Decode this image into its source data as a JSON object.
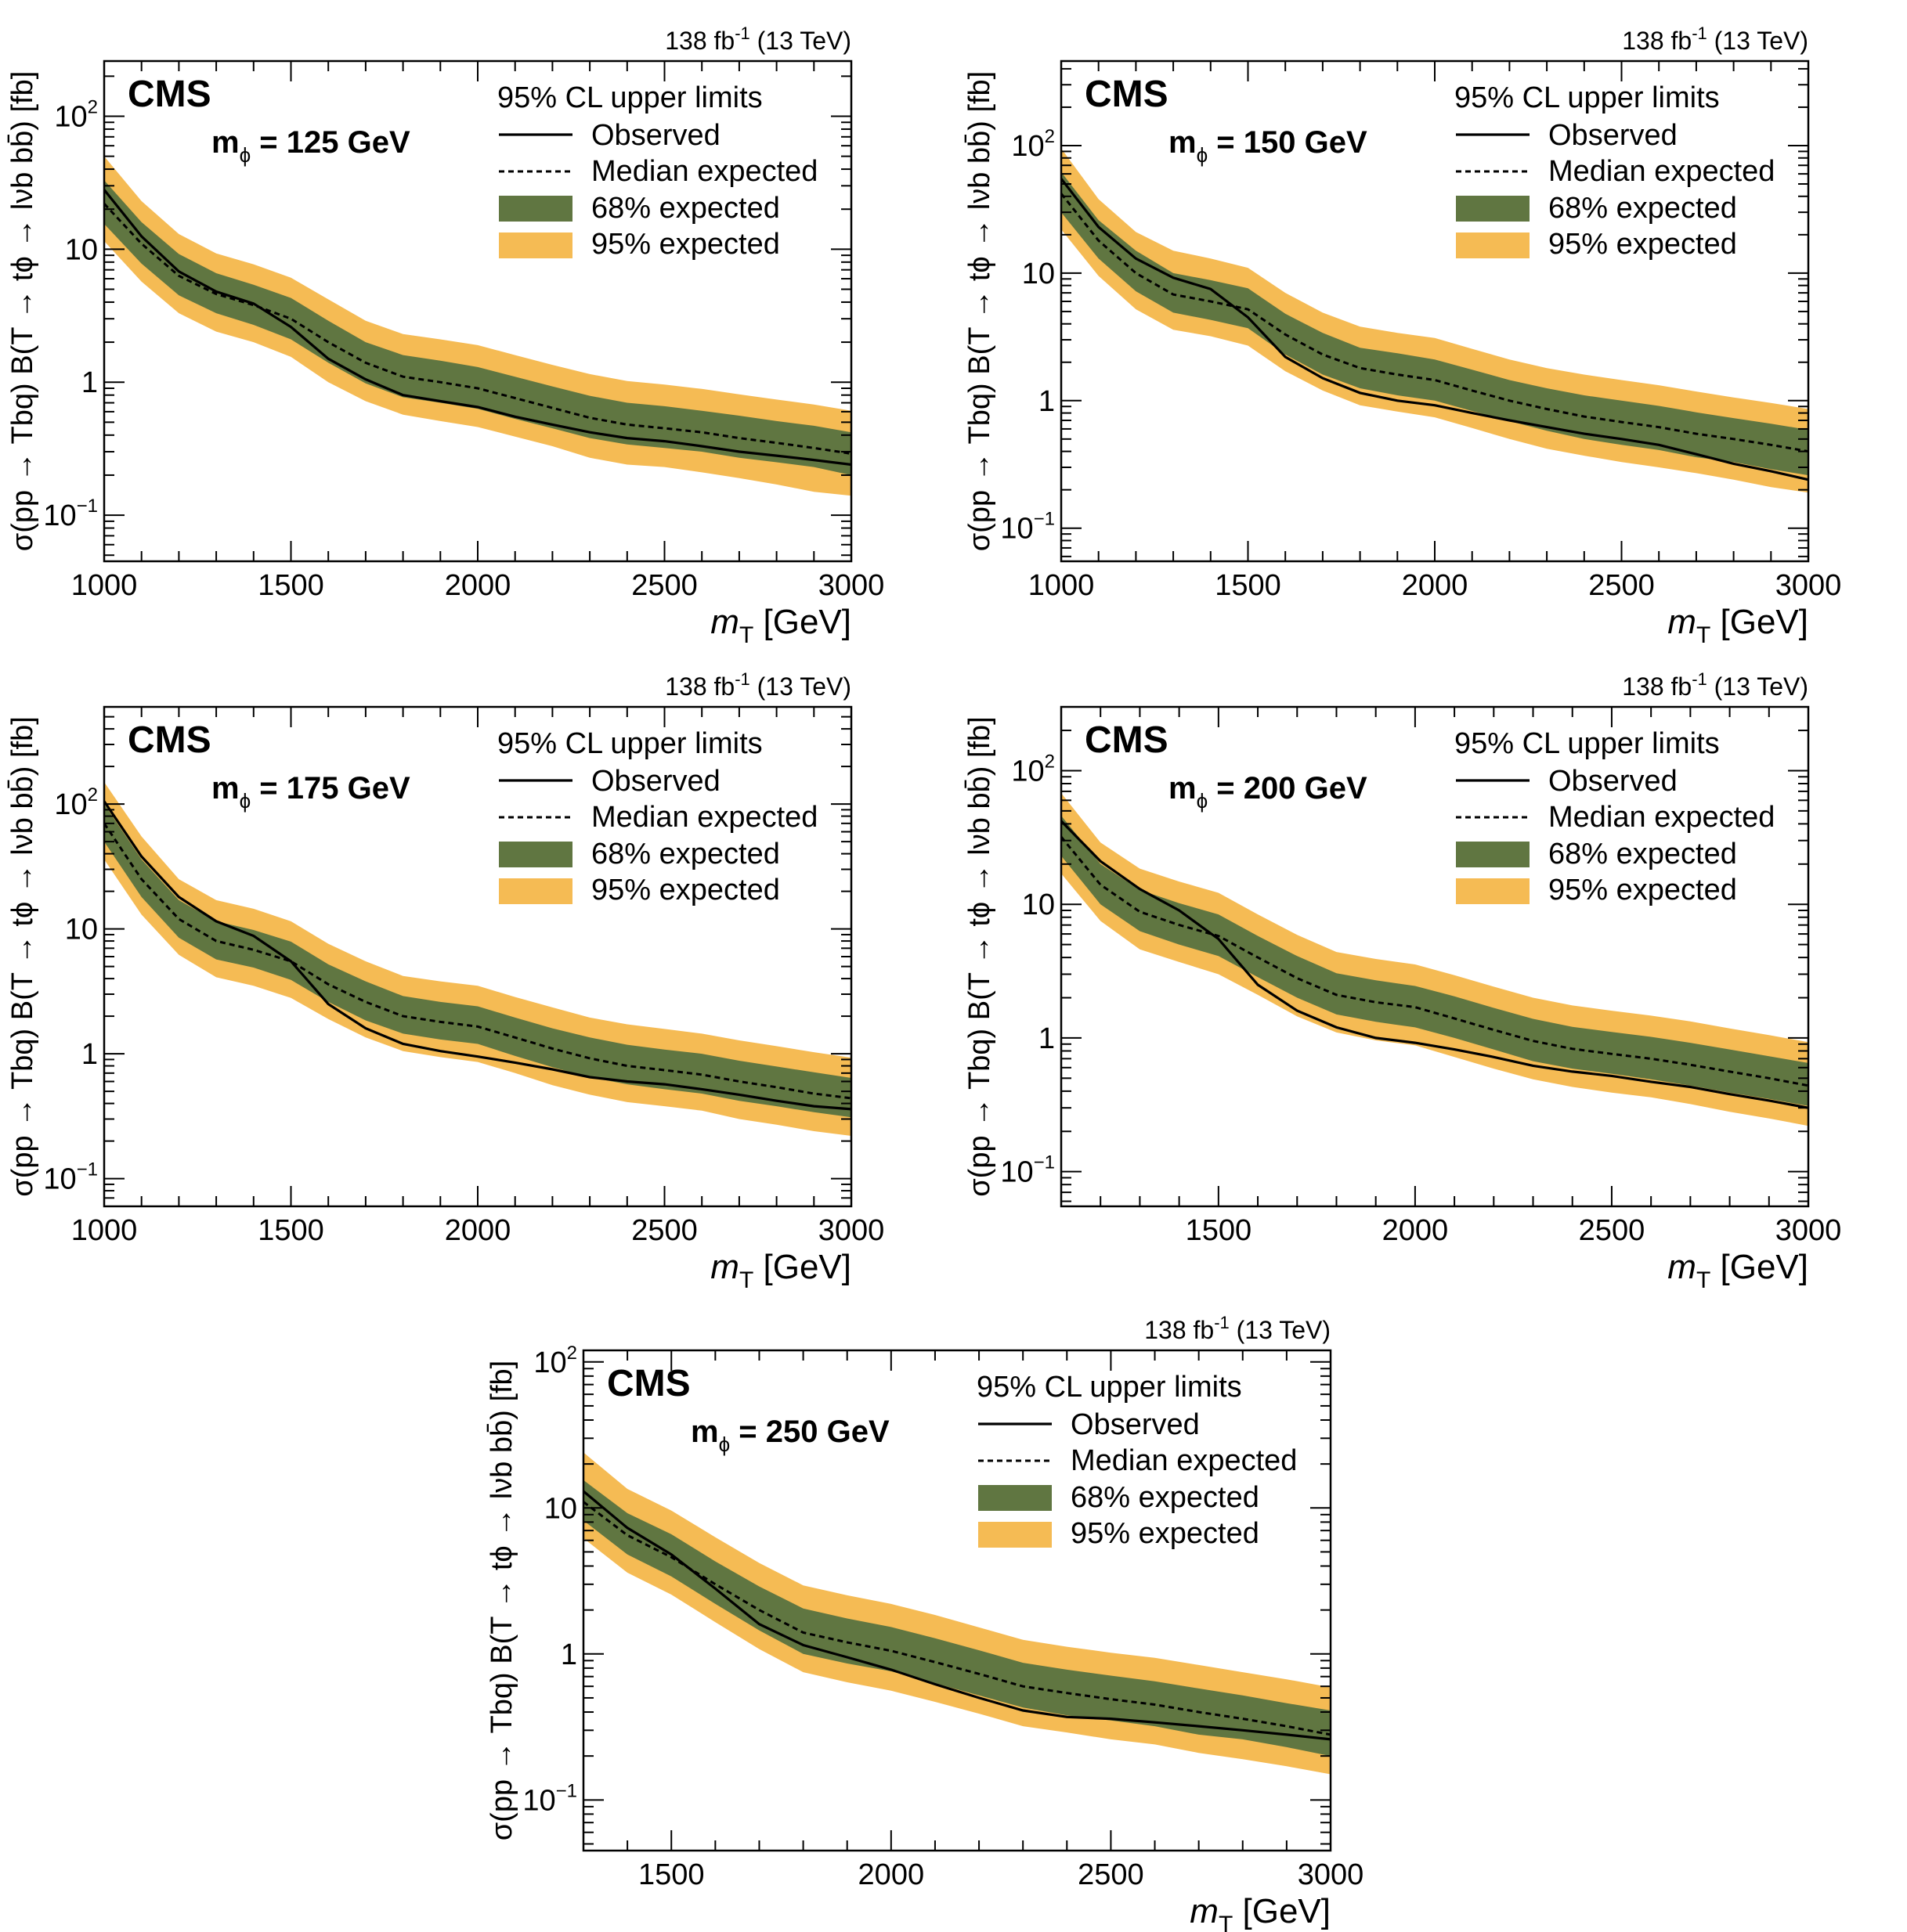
{
  "figure": {
    "lumi_text": "138 fb",
    "lumi_sup": "-1",
    "energy_text": "(13 TeV)",
    "cms_label": "CMS",
    "legend": {
      "title": "95% CL upper limits",
      "observed": "Observed",
      "expected": "Median expected",
      "band68": "68% expected",
      "band95": "95% expected"
    },
    "colors": {
      "band68": "#607641",
      "band95": "#F5BB54",
      "line": "#000000"
    },
    "xlabel_var": "m",
    "xlabel_sub": "T",
    "xlabel_unit": "[GeV]",
    "ylabel": "σ(pp → Tbq) B(T → tϕ → lνb  bb̄) [fb]"
  },
  "chart_data": [
    {
      "type": "line",
      "title": "mϕ = 125 GeV",
      "mass_label": "m",
      "mass_sub": "ϕ",
      "mass_value": "= 125 GeV",
      "xlabel": "mT [GeV]",
      "ylabel": "σ(pp → Tbq) B(T → tϕ → lνb  bb̄) [fb]",
      "xlim": [
        1000,
        3000
      ],
      "ylim": [
        0.045,
        260
      ],
      "yscale": "log",
      "x_ticks": [
        1000,
        1500,
        2000,
        2500,
        3000
      ],
      "y_ticks": [
        {
          "v": 0.1,
          "base": "10",
          "exp": "−1"
        },
        {
          "v": 1,
          "base": "1",
          "exp": ""
        },
        {
          "v": 10,
          "base": "10",
          "exp": ""
        },
        {
          "v": 100,
          "base": "10",
          "exp": "2"
        }
      ],
      "x": [
        1000,
        1100,
        1200,
        1300,
        1400,
        1500,
        1600,
        1700,
        1800,
        1900,
        2000,
        2100,
        2200,
        2300,
        2400,
        2500,
        2600,
        2700,
        2800,
        2900,
        3000
      ],
      "observed": [
        28,
        12.5,
        6.8,
        4.8,
        3.9,
        2.6,
        1.5,
        1.05,
        0.8,
        0.72,
        0.65,
        0.55,
        0.48,
        0.42,
        0.38,
        0.36,
        0.33,
        0.3,
        0.28,
        0.26,
        0.24
      ],
      "expected": [
        22,
        11,
        6.3,
        4.6,
        3.8,
        3.0,
        2.0,
        1.4,
        1.1,
        1.0,
        0.9,
        0.76,
        0.64,
        0.54,
        0.48,
        0.45,
        0.42,
        0.38,
        0.35,
        0.32,
        0.29
      ],
      "band68_low": [
        15.5,
        7.8,
        4.5,
        3.3,
        2.7,
        2.1,
        1.4,
        0.98,
        0.77,
        0.7,
        0.63,
        0.53,
        0.45,
        0.38,
        0.34,
        0.32,
        0.3,
        0.27,
        0.25,
        0.23,
        0.2
      ],
      "band68_high": [
        33,
        16,
        9.2,
        6.6,
        5.4,
        4.3,
        2.9,
        2.0,
        1.6,
        1.45,
        1.3,
        1.1,
        0.93,
        0.79,
        0.7,
        0.66,
        0.61,
        0.56,
        0.51,
        0.47,
        0.42
      ],
      "band95_low": [
        11.5,
        5.7,
        3.3,
        2.4,
        2.0,
        1.55,
        1.0,
        0.72,
        0.57,
        0.51,
        0.46,
        0.39,
        0.33,
        0.27,
        0.24,
        0.23,
        0.21,
        0.19,
        0.17,
        0.15,
        0.14
      ],
      "band95_high": [
        50,
        23,
        13,
        9.3,
        7.7,
        6.1,
        4.2,
        2.9,
        2.3,
        2.1,
        1.9,
        1.6,
        1.35,
        1.15,
        1.02,
        0.96,
        0.89,
        0.81,
        0.74,
        0.68,
        0.61
      ]
    },
    {
      "type": "line",
      "title": "mϕ = 150 GeV",
      "mass_label": "m",
      "mass_sub": "ϕ",
      "mass_value": "= 150 GeV",
      "xlabel": "mT [GeV]",
      "ylabel": "σ(pp → Tbq) B(T → tϕ → lνb  bb̄) [fb]",
      "xlim": [
        1000,
        3000
      ],
      "ylim": [
        0.055,
        460
      ],
      "yscale": "log",
      "x_ticks": [
        1000,
        1500,
        2000,
        2500,
        3000
      ],
      "y_ticks": [
        {
          "v": 0.1,
          "base": "10",
          "exp": "−1"
        },
        {
          "v": 1,
          "base": "1",
          "exp": ""
        },
        {
          "v": 10,
          "base": "10",
          "exp": ""
        },
        {
          "v": 100,
          "base": "10",
          "exp": "2"
        }
      ],
      "x": [
        1000,
        1100,
        1200,
        1300,
        1400,
        1500,
        1600,
        1700,
        1800,
        1900,
        2000,
        2100,
        2200,
        2300,
        2400,
        2500,
        2600,
        2700,
        2800,
        2900,
        3000
      ],
      "observed": [
        55,
        23,
        13,
        9.2,
        7.5,
        4.5,
        2.2,
        1.5,
        1.15,
        1.0,
        0.92,
        0.8,
        0.7,
        0.62,
        0.55,
        0.5,
        0.45,
        0.38,
        0.32,
        0.28,
        0.24
      ],
      "expected": [
        42,
        18,
        10,
        6.8,
        6.0,
        5.2,
        3.3,
        2.3,
        1.8,
        1.6,
        1.45,
        1.2,
        1.0,
        0.86,
        0.75,
        0.68,
        0.62,
        0.55,
        0.5,
        0.45,
        0.4
      ],
      "band68_low": [
        30,
        13,
        7.2,
        4.9,
        4.3,
        3.7,
        2.3,
        1.6,
        1.25,
        1.1,
        1.0,
        0.83,
        0.69,
        0.58,
        0.5,
        0.45,
        0.41,
        0.36,
        0.33,
        0.29,
        0.26
      ],
      "band68_high": [
        62,
        26,
        15,
        10,
        8.8,
        7.6,
        4.8,
        3.4,
        2.6,
        2.35,
        2.1,
        1.75,
        1.45,
        1.25,
        1.1,
        1.0,
        0.91,
        0.81,
        0.73,
        0.66,
        0.59
      ],
      "band95_low": [
        22,
        9.5,
        5.2,
        3.6,
        3.2,
        2.7,
        1.7,
        1.2,
        0.92,
        0.82,
        0.74,
        0.61,
        0.5,
        0.42,
        0.37,
        0.33,
        0.3,
        0.27,
        0.24,
        0.21,
        0.19
      ],
      "band95_high": [
        95,
        38,
        21,
        15,
        13,
        11,
        7.0,
        4.9,
        3.8,
        3.4,
        3.1,
        2.55,
        2.1,
        1.8,
        1.6,
        1.45,
        1.32,
        1.18,
        1.06,
        0.96,
        0.86
      ]
    },
    {
      "type": "line",
      "title": "mϕ = 175 GeV",
      "mass_label": "m",
      "mass_sub": "ϕ",
      "mass_value": "= 175 GeV",
      "xlabel": "mT [GeV]",
      "ylabel": "σ(pp → Tbq) B(T → tϕ → lνb  bb̄) [fb]",
      "xlim": [
        1000,
        3000
      ],
      "ylim": [
        0.06,
        600
      ],
      "yscale": "log",
      "x_ticks": [
        1000,
        1500,
        2000,
        2500,
        3000
      ],
      "y_ticks": [
        {
          "v": 0.1,
          "base": "10",
          "exp": "−1"
        },
        {
          "v": 1,
          "base": "1",
          "exp": ""
        },
        {
          "v": 10,
          "base": "10",
          "exp": ""
        },
        {
          "v": 100,
          "base": "10",
          "exp": "2"
        }
      ],
      "x": [
        1000,
        1100,
        1200,
        1300,
        1400,
        1500,
        1600,
        1700,
        1800,
        1900,
        2000,
        2100,
        2200,
        2300,
        2400,
        2500,
        2600,
        2700,
        2800,
        2900,
        3000
      ],
      "observed": [
        105,
        38,
        18,
        11.5,
        8.8,
        5.5,
        2.5,
        1.6,
        1.2,
        1.05,
        0.95,
        0.85,
        0.75,
        0.65,
        0.6,
        0.57,
        0.52,
        0.47,
        0.42,
        0.38,
        0.36
      ],
      "expected": [
        70,
        25,
        12,
        8.0,
        6.8,
        5.5,
        3.6,
        2.6,
        2.0,
        1.8,
        1.65,
        1.35,
        1.1,
        0.92,
        0.8,
        0.74,
        0.68,
        0.6,
        0.54,
        0.48,
        0.44
      ],
      "band68_low": [
        50,
        18,
        8.5,
        5.7,
        4.9,
        3.9,
        2.6,
        1.85,
        1.45,
        1.3,
        1.2,
        0.96,
        0.78,
        0.65,
        0.57,
        0.52,
        0.48,
        0.42,
        0.38,
        0.34,
        0.31
      ],
      "band68_high": [
        100,
        36,
        17,
        11.5,
        9.8,
        7.9,
        5.2,
        3.8,
        2.9,
        2.6,
        2.4,
        1.95,
        1.6,
        1.35,
        1.18,
        1.08,
        1.0,
        0.88,
        0.79,
        0.71,
        0.64
      ],
      "band95_low": [
        36,
        13,
        6.2,
        4.1,
        3.5,
        2.8,
        1.9,
        1.35,
        1.05,
        0.94,
        0.86,
        0.7,
        0.56,
        0.47,
        0.41,
        0.38,
        0.35,
        0.3,
        0.27,
        0.24,
        0.22
      ],
      "band95_high": [
        150,
        55,
        25,
        17,
        14.5,
        11.5,
        7.6,
        5.5,
        4.2,
        3.8,
        3.5,
        2.85,
        2.35,
        1.95,
        1.72,
        1.58,
        1.45,
        1.28,
        1.15,
        1.03,
        0.93
      ]
    },
    {
      "type": "line",
      "title": "mϕ = 200 GeV",
      "mass_label": "m",
      "mass_sub": "ϕ",
      "mass_value": "= 200 GeV",
      "xlabel": "mT [GeV]",
      "ylabel": "σ(pp → Tbq) B(T → tϕ → lνb  bb̄) [fb]",
      "xlim": [
        1100,
        3000
      ],
      "ylim": [
        0.055,
        300
      ],
      "yscale": "log",
      "x_ticks": [
        1500,
        2000,
        2500,
        3000
      ],
      "y_ticks": [
        {
          "v": 0.1,
          "base": "10",
          "exp": "−1"
        },
        {
          "v": 1,
          "base": "1",
          "exp": ""
        },
        {
          "v": 10,
          "base": "10",
          "exp": ""
        },
        {
          "v": 100,
          "base": "10",
          "exp": "2"
        }
      ],
      "x": [
        1100,
        1200,
        1300,
        1400,
        1500,
        1600,
        1700,
        1800,
        1900,
        2000,
        2100,
        2200,
        2300,
        2400,
        2500,
        2600,
        2700,
        2800,
        2900,
        3000
      ],
      "observed": [
        42,
        21,
        13,
        9.0,
        5.5,
        2.5,
        1.6,
        1.2,
        1.0,
        0.92,
        0.82,
        0.72,
        0.62,
        0.56,
        0.52,
        0.47,
        0.43,
        0.38,
        0.34,
        0.3
      ],
      "expected": [
        32,
        14,
        8.8,
        7.0,
        5.8,
        4.0,
        2.8,
        2.1,
        1.85,
        1.7,
        1.4,
        1.15,
        0.95,
        0.83,
        0.76,
        0.7,
        0.63,
        0.56,
        0.5,
        0.44
      ],
      "band68_low": [
        23,
        10,
        6.3,
        5.0,
        4.1,
        2.85,
        2.0,
        1.5,
        1.32,
        1.2,
        1.0,
        0.82,
        0.67,
        0.59,
        0.54,
        0.49,
        0.44,
        0.39,
        0.35,
        0.31
      ],
      "band68_high": [
        46,
        20,
        12.8,
        10.2,
        8.4,
        5.8,
        4.1,
        3.05,
        2.7,
        2.45,
        2.05,
        1.68,
        1.39,
        1.21,
        1.11,
        1.02,
        0.92,
        0.82,
        0.73,
        0.65
      ],
      "band95_low": [
        17,
        7.5,
        4.6,
        3.7,
        3.0,
        2.1,
        1.45,
        1.1,
        0.96,
        0.88,
        0.72,
        0.59,
        0.49,
        0.43,
        0.39,
        0.36,
        0.32,
        0.28,
        0.25,
        0.22
      ],
      "band95_high": [
        68,
        29,
        18.5,
        14.8,
        12.2,
        8.4,
        5.9,
        4.4,
        3.9,
        3.55,
        2.95,
        2.42,
        2.0,
        1.75,
        1.6,
        1.47,
        1.33,
        1.18,
        1.05,
        0.93
      ]
    },
    {
      "type": "line",
      "title": "mϕ = 250 GeV",
      "mass_label": "m",
      "mass_sub": "ϕ",
      "mass_value": "= 250 GeV",
      "xlabel": "mT [GeV]",
      "ylabel": "σ(pp → Tbq) B(T → tϕ → lνb  bb̄) [fb]",
      "xlim": [
        1300,
        3000
      ],
      "ylim": [
        0.045,
        120
      ],
      "yscale": "log",
      "x_ticks": [
        1500,
        2000,
        2500,
        3000
      ],
      "y_ticks": [
        {
          "v": 0.1,
          "base": "10",
          "exp": "−1"
        },
        {
          "v": 1,
          "base": "1",
          "exp": ""
        },
        {
          "v": 10,
          "base": "10",
          "exp": ""
        },
        {
          "v": 100,
          "base": "10",
          "exp": "2"
        }
      ],
      "x": [
        1300,
        1400,
        1500,
        1600,
        1700,
        1800,
        1900,
        2000,
        2100,
        2200,
        2300,
        2400,
        2500,
        2600,
        2700,
        2800,
        2900,
        3000
      ],
      "observed": [
        13,
        7.3,
        4.8,
        2.8,
        1.6,
        1.15,
        0.95,
        0.78,
        0.62,
        0.5,
        0.41,
        0.37,
        0.36,
        0.34,
        0.32,
        0.3,
        0.28,
        0.26
      ],
      "expected": [
        11,
        6.5,
        4.6,
        3.0,
        2.0,
        1.4,
        1.2,
        1.05,
        0.88,
        0.73,
        0.6,
        0.54,
        0.49,
        0.45,
        0.4,
        0.36,
        0.32,
        0.28
      ],
      "band68_low": [
        8.2,
        4.8,
        3.4,
        2.2,
        1.45,
        1.0,
        0.86,
        0.76,
        0.63,
        0.52,
        0.43,
        0.38,
        0.35,
        0.32,
        0.28,
        0.26,
        0.23,
        0.2
      ],
      "band68_high": [
        15.5,
        9.2,
        6.6,
        4.3,
        2.9,
        2.05,
        1.75,
        1.53,
        1.28,
        1.06,
        0.87,
        0.78,
        0.71,
        0.65,
        0.58,
        0.52,
        0.46,
        0.41
      ],
      "band95_low": [
        6.2,
        3.6,
        2.55,
        1.65,
        1.08,
        0.75,
        0.64,
        0.56,
        0.47,
        0.39,
        0.32,
        0.29,
        0.26,
        0.24,
        0.21,
        0.19,
        0.17,
        0.15
      ],
      "band95_high": [
        24,
        13.5,
        9.6,
        6.3,
        4.2,
        2.95,
        2.52,
        2.2,
        1.85,
        1.52,
        1.25,
        1.12,
        1.02,
        0.94,
        0.84,
        0.75,
        0.67,
        0.59
      ]
    }
  ]
}
